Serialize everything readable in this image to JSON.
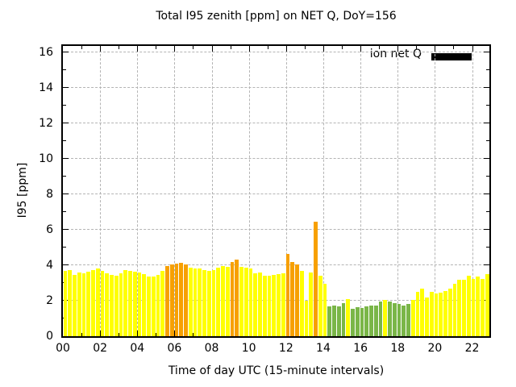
{
  "chart_data": {
    "type": "bar",
    "title": "Total I95 zenith [ppm] on NET Q, DoY=156",
    "xlabel": "Time of day UTC (15-minute intervals)",
    "ylabel": "I95 [ppm]",
    "ylim": [
      0,
      16.4
    ],
    "xlim_hours": [
      0,
      22.93
    ],
    "y_major_ticks": [
      0,
      2,
      4,
      6,
      8,
      10,
      12,
      14,
      16
    ],
    "x_major_tick_hours": [
      0,
      2,
      4,
      6,
      8,
      10,
      12,
      14,
      16,
      18,
      20,
      22
    ],
    "x_major_tick_labels": [
      "00",
      "02",
      "04",
      "06",
      "08",
      "10",
      "12",
      "14",
      "16",
      "18",
      "20",
      "22"
    ],
    "grid": true,
    "bar_interval_minutes": 15,
    "legend": {
      "label": "ion net Q",
      "swatch_color": "#000000",
      "position": "top-right-inside"
    },
    "palette": {
      "y": "#ffff00",
      "o": "#f7a000",
      "g": "#7ab648"
    },
    "categories": [
      "00:00",
      "00:15",
      "00:30",
      "00:45",
      "01:00",
      "01:15",
      "01:30",
      "01:45",
      "02:00",
      "02:15",
      "02:30",
      "02:45",
      "03:00",
      "03:15",
      "03:30",
      "03:45",
      "04:00",
      "04:15",
      "04:30",
      "04:45",
      "05:00",
      "05:15",
      "05:30",
      "05:45",
      "06:00",
      "06:15",
      "06:30",
      "06:45",
      "07:00",
      "07:15",
      "07:30",
      "07:45",
      "08:00",
      "08:15",
      "08:30",
      "08:45",
      "09:00",
      "09:15",
      "09:30",
      "09:45",
      "10:00",
      "10:15",
      "10:30",
      "10:45",
      "11:00",
      "11:15",
      "11:30",
      "11:45",
      "12:00",
      "12:15",
      "12:30",
      "12:45",
      "13:00",
      "13:15",
      "13:30",
      "13:45",
      "14:00",
      "14:15",
      "14:30",
      "14:45",
      "15:00",
      "15:15",
      "15:30",
      "15:45",
      "16:00",
      "16:15",
      "16:30",
      "16:45",
      "17:00",
      "17:15",
      "17:30",
      "17:45",
      "18:00",
      "18:15",
      "18:30",
      "18:45",
      "19:00",
      "19:15",
      "19:30",
      "19:45",
      "20:00",
      "20:15",
      "20:30",
      "20:45",
      "21:00",
      "21:15",
      "21:30",
      "21:45",
      "22:00",
      "22:15",
      "22:30",
      "22:45"
    ],
    "values": [
      3.7,
      3.75,
      3.45,
      3.6,
      3.55,
      3.65,
      3.75,
      3.8,
      3.7,
      3.55,
      3.45,
      3.4,
      3.55,
      3.75,
      3.7,
      3.65,
      3.6,
      3.5,
      3.35,
      3.35,
      3.45,
      3.7,
      3.95,
      4.05,
      4.1,
      4.15,
      4.05,
      3.85,
      3.8,
      3.8,
      3.75,
      3.7,
      3.75,
      3.85,
      3.95,
      3.9,
      4.2,
      4.3,
      3.9,
      3.85,
      3.8,
      3.55,
      3.6,
      3.4,
      3.4,
      3.45,
      3.5,
      3.55,
      4.65,
      4.2,
      4.05,
      3.7,
      2.0,
      3.6,
      6.45,
      3.4,
      2.95,
      1.7,
      1.75,
      1.7,
      1.85,
      2.1,
      1.55,
      1.65,
      1.6,
      1.7,
      1.75,
      1.75,
      1.95,
      2.05,
      1.95,
      1.85,
      1.8,
      1.75,
      1.8,
      2.05,
      2.5,
      2.7,
      2.2,
      2.5,
      2.4,
      2.45,
      2.55,
      2.7,
      2.95,
      3.2,
      3.2,
      3.4,
      3.25,
      3.35,
      3.25,
      3.5
    ],
    "bar_colors": [
      "y",
      "y",
      "y",
      "y",
      "y",
      "y",
      "y",
      "y",
      "y",
      "y",
      "y",
      "y",
      "y",
      "y",
      "y",
      "y",
      "y",
      "y",
      "y",
      "y",
      "y",
      "y",
      "o",
      "o",
      "o",
      "o",
      "o",
      "y",
      "y",
      "y",
      "y",
      "y",
      "y",
      "y",
      "y",
      "y",
      "o",
      "o",
      "y",
      "y",
      "y",
      "y",
      "y",
      "y",
      "y",
      "y",
      "y",
      "y",
      "o",
      "o",
      "o",
      "y",
      "y",
      "y",
      "o",
      "y",
      "y",
      "g",
      "g",
      "g",
      "g",
      "y",
      "g",
      "g",
      "g",
      "g",
      "g",
      "g",
      "g",
      "y",
      "g",
      "g",
      "g",
      "g",
      "g",
      "y",
      "y",
      "y",
      "y",
      "y",
      "y",
      "y",
      "y",
      "y",
      "y",
      "y",
      "y",
      "y",
      "y",
      "y",
      "y",
      "y"
    ]
  }
}
